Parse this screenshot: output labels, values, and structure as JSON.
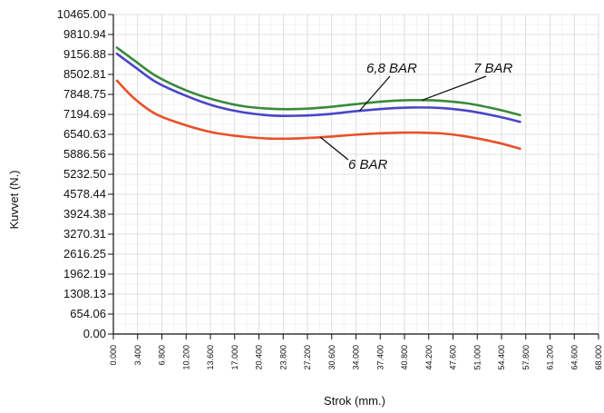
{
  "chart_data": {
    "type": "line",
    "xlabel": "Strok (mm.)",
    "ylabel": "Kuvvet (N.)",
    "xlim": [
      0,
      68
    ],
    "ylim": [
      0,
      10465
    ],
    "x_ticks": [
      "0.000",
      "3.400",
      "6.800",
      "10.200",
      "13.600",
      "17.000",
      "20.400",
      "23.800",
      "27.200",
      "30.600",
      "34.000",
      "37.400",
      "40.800",
      "44.200",
      "47.600",
      "51.000",
      "54.400",
      "57.800",
      "61.200",
      "64.600",
      "68.000"
    ],
    "y_ticks": [
      "0.00",
      "654.06",
      "1308.13",
      "1962.19",
      "2616.25",
      "3270.31",
      "3924.38",
      "4578.44",
      "5232.50",
      "5886.56",
      "6540.63",
      "7194.69",
      "7848.75",
      "8502.81",
      "9156.88",
      "9810.94",
      "10465.00"
    ],
    "grid": true,
    "series": [
      {
        "name": "6 BAR",
        "color": "#e8502a",
        "x": [
          0.5,
          3,
          6,
          10,
          14,
          18,
          22,
          26,
          30,
          34,
          38,
          42,
          46,
          50,
          54,
          57
        ],
        "y": [
          8300,
          7700,
          7200,
          6850,
          6600,
          6470,
          6400,
          6410,
          6460,
          6530,
          6580,
          6600,
          6570,
          6450,
          6260,
          6070
        ]
      },
      {
        "name": "6,8 BAR",
        "color": "#4a46c8",
        "x": [
          0.5,
          3,
          6,
          10,
          14,
          18,
          22,
          26,
          30,
          34,
          38,
          42,
          46,
          50,
          54,
          57
        ],
        "y": [
          9180,
          8750,
          8250,
          7820,
          7480,
          7270,
          7160,
          7150,
          7200,
          7300,
          7380,
          7420,
          7400,
          7300,
          7120,
          6950
        ]
      },
      {
        "name": "7 BAR",
        "color": "#3a8a3a",
        "x": [
          0.5,
          3,
          6,
          10,
          14,
          18,
          22,
          26,
          30,
          34,
          38,
          42,
          46,
          50,
          54,
          57
        ],
        "y": [
          9380,
          8950,
          8450,
          8000,
          7680,
          7470,
          7380,
          7370,
          7430,
          7530,
          7620,
          7660,
          7640,
          7540,
          7350,
          7170
        ]
      }
    ],
    "annotations": [
      {
        "text": "7 BAR",
        "series": 2
      },
      {
        "text": "6,8 BAR",
        "series": 1
      },
      {
        "text": "6 BAR",
        "series": 0
      }
    ]
  }
}
